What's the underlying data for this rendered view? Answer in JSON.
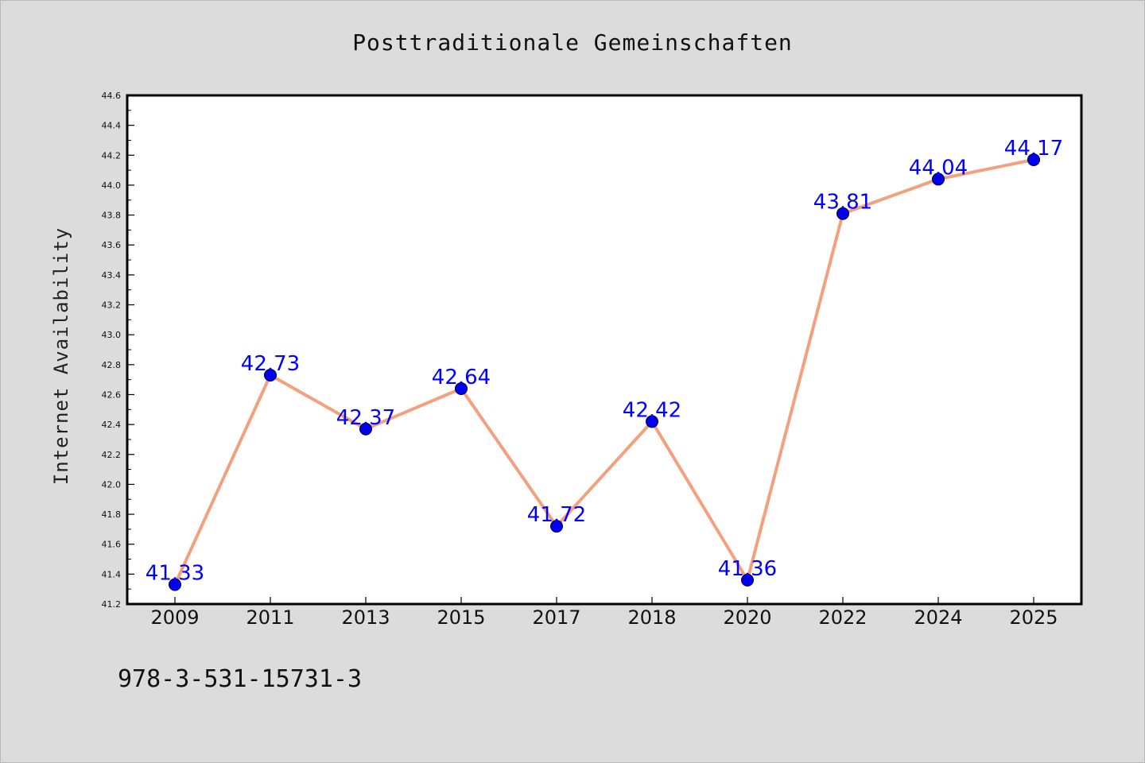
{
  "chart_data": {
    "type": "line",
    "title": "Posttraditionale Gemeinschaften",
    "ylabel": "Internet Availability",
    "xlabel": "",
    "categories": [
      "2009",
      "2011",
      "2013",
      "2015",
      "2017",
      "2018",
      "2020",
      "2022",
      "2024",
      "2025"
    ],
    "series": [
      {
        "values": [
          41.33,
          42.73,
          42.37,
          42.64,
          41.72,
          42.42,
          41.36,
          43.81,
          44.04,
          44.17
        ],
        "data_labels": [
          "41.33",
          "42.73",
          "42.37",
          "42.64",
          "41.72",
          "42.42",
          "41.36",
          "43.81",
          "44.04",
          "44.17"
        ]
      }
    ],
    "ylim": [
      41.2,
      44.6
    ],
    "yticks": [
      "41.2",
      "41.4",
      "41.6",
      "41.8",
      "42.0",
      "42.2",
      "42.4",
      "42.6",
      "42.8",
      "43.0",
      "43.2",
      "43.4",
      "43.6",
      "43.8",
      "44.0",
      "44.2",
      "44.4",
      "44.6"
    ],
    "grid": false,
    "legend": "none",
    "line_color": "#f4a07e",
    "marker_color": "#0000ee",
    "label_color": "#0000ff",
    "frame_color": "#000000",
    "plot_background": "#ffffff",
    "page_background": "#dcdcdc"
  },
  "footnote": "978-3-531-15731-3"
}
